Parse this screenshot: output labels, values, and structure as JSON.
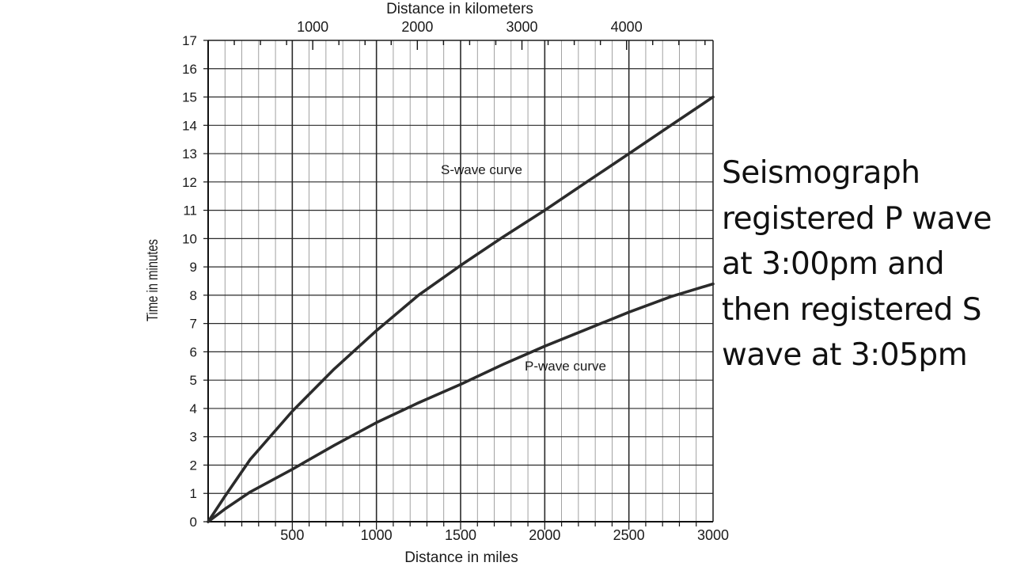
{
  "chart_data": {
    "type": "line",
    "title": "",
    "xlabel": "Distance in miles",
    "ylabel": "Time in minutes",
    "x2label": "Distance in kilometers",
    "xlim": [
      0,
      3000
    ],
    "ylim": [
      0,
      17
    ],
    "x_ticks": [
      500,
      1000,
      1500,
      2000,
      2500,
      3000
    ],
    "y_ticks": [
      0,
      1,
      2,
      3,
      4,
      5,
      6,
      7,
      8,
      9,
      10,
      11,
      12,
      13,
      14,
      15,
      16,
      17
    ],
    "x2_ticks": [
      1000,
      2000,
      3000,
      4000
    ],
    "km_per_mile": 1.609,
    "grid": true,
    "series": [
      {
        "name": "S-wave curve",
        "x": [
          0,
          100,
          250,
          500,
          750,
          1000,
          1250,
          1500,
          1750,
          2000,
          2250,
          2500,
          2750,
          3000
        ],
        "y": [
          0,
          0.9,
          2.2,
          3.9,
          5.4,
          6.75,
          8.0,
          9.05,
          10.05,
          11.0,
          12.0,
          13.0,
          14.0,
          15.0
        ]
      },
      {
        "name": "P-wave curve",
        "x": [
          0,
          100,
          250,
          500,
          750,
          1000,
          1250,
          1500,
          1750,
          2000,
          2250,
          2500,
          2750,
          3000
        ],
        "y": [
          0,
          0.45,
          1.05,
          1.85,
          2.7,
          3.5,
          4.2,
          4.85,
          5.55,
          6.2,
          6.8,
          7.4,
          7.95,
          8.4
        ]
      }
    ],
    "annotations": [
      {
        "text": "S-wave curve",
        "series": "S-wave curve"
      },
      {
        "text": "P-wave curve",
        "series": "P-wave curve"
      }
    ]
  },
  "slide_text": {
    "lines": [
      "Seismograph",
      "registered P wave",
      "at 3:00pm and",
      "then registered S",
      "wave at 3:05pm"
    ]
  }
}
